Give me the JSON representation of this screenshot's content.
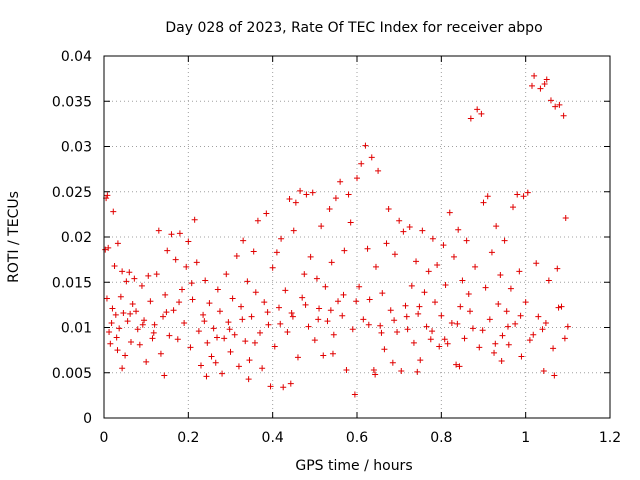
{
  "chart_data": {
    "type": "scatter",
    "title": "Day 028 of 2023, Rate Of TEC Index for receiver abpo",
    "xlabel": "GPS time / hours",
    "ylabel": "ROTI / TECUs",
    "xlim": [
      0,
      1.2
    ],
    "ylim": [
      0,
      0.04
    ],
    "xticks": [
      "0",
      "0.2",
      "0.4",
      "0.6",
      "0.8",
      "1",
      "1.2"
    ],
    "yticks": [
      "0",
      "0.005",
      "0.01",
      "0.015",
      "0.02",
      "0.025",
      "0.03",
      "0.035",
      "0.04"
    ],
    "grid": true,
    "marker": "+",
    "color": "#e00000",
    "series": [
      {
        "points": [
          [
            0.003,
            0.0186
          ],
          [
            0.005,
            0.0243
          ],
          [
            0.008,
            0.0246
          ],
          [
            0.01,
            0.0188
          ],
          [
            0.012,
            0.0095
          ],
          [
            0.015,
            0.0082
          ],
          [
            0.018,
            0.0105
          ],
          [
            0.02,
            0.0121
          ],
          [
            0.022,
            0.0228
          ],
          [
            0.025,
            0.0168
          ],
          [
            0.028,
            0.0114
          ],
          [
            0.03,
            0.0089
          ],
          [
            0.033,
            0.0193
          ],
          [
            0.036,
            0.0099
          ],
          [
            0.04,
            0.0134
          ],
          [
            0.043,
            0.0162
          ],
          [
            0.046,
            0.0116
          ],
          [
            0.05,
            0.0069
          ],
          [
            0.053,
            0.0151
          ],
          [
            0.056,
            0.0107
          ],
          [
            0.06,
            0.0161
          ],
          [
            0.064,
            0.0084
          ],
          [
            0.068,
            0.0126
          ],
          [
            0.072,
            0.0154
          ],
          [
            0.076,
            0.0118
          ],
          [
            0.08,
            0.0098
          ],
          [
            0.085,
            0.0081
          ],
          [
            0.09,
            0.0146
          ],
          [
            0.095,
            0.0108
          ],
          [
            0.1,
            0.0062
          ],
          [
            0.105,
            0.0157
          ],
          [
            0.11,
            0.0129
          ],
          [
            0.115,
            0.0088
          ],
          [
            0.12,
            0.0103
          ],
          [
            0.125,
            0.0159
          ],
          [
            0.13,
            0.0207
          ],
          [
            0.135,
            0.0071
          ],
          [
            0.14,
            0.0112
          ],
          [
            0.145,
            0.0136
          ],
          [
            0.15,
            0.0185
          ],
          [
            0.155,
            0.0091
          ],
          [
            0.16,
            0.0203
          ],
          [
            0.165,
            0.0119
          ],
          [
            0.17,
            0.0175
          ],
          [
            0.175,
            0.0087
          ],
          [
            0.18,
            0.0204
          ],
          [
            0.185,
            0.0142
          ],
          [
            0.19,
            0.0105
          ],
          [
            0.195,
            0.0167
          ],
          [
            0.2,
            0.0195
          ],
          [
            0.205,
            0.0078
          ],
          [
            0.21,
            0.0131
          ],
          [
            0.215,
            0.0219
          ],
          [
            0.22,
            0.0172
          ],
          [
            0.225,
            0.0096
          ],
          [
            0.23,
            0.0058
          ],
          [
            0.235,
            0.0114
          ],
          [
            0.24,
            0.0152
          ],
          [
            0.245,
            0.0083
          ],
          [
            0.25,
            0.0127
          ],
          [
            0.255,
            0.0068
          ],
          [
            0.26,
            0.0099
          ],
          [
            0.265,
            0.0061
          ],
          [
            0.27,
            0.0142
          ],
          [
            0.275,
            0.0118
          ],
          [
            0.28,
            0.0049
          ],
          [
            0.285,
            0.0088
          ],
          [
            0.29,
            0.0159
          ],
          [
            0.295,
            0.0106
          ],
          [
            0.3,
            0.0073
          ],
          [
            0.305,
            0.0132
          ],
          [
            0.31,
            0.0092
          ],
          [
            0.315,
            0.0179
          ],
          [
            0.32,
            0.0057
          ],
          [
            0.325,
            0.0123
          ],
          [
            0.33,
            0.0196
          ],
          [
            0.335,
            0.0085
          ],
          [
            0.34,
            0.0151
          ],
          [
            0.345,
            0.0064
          ],
          [
            0.35,
            0.0112
          ],
          [
            0.355,
            0.0184
          ],
          [
            0.36,
            0.0139
          ],
          [
            0.365,
            0.0218
          ],
          [
            0.37,
            0.0094
          ],
          [
            0.375,
            0.0055
          ],
          [
            0.38,
            0.0128
          ],
          [
            0.385,
            0.0226
          ],
          [
            0.39,
            0.0103
          ],
          [
            0.395,
            0.0035
          ],
          [
            0.4,
            0.0166
          ],
          [
            0.405,
            0.0079
          ],
          [
            0.41,
            0.0183
          ],
          [
            0.415,
            0.0122
          ],
          [
            0.42,
            0.0198
          ],
          [
            0.425,
            0.0034
          ],
          [
            0.43,
            0.0141
          ],
          [
            0.435,
            0.0095
          ],
          [
            0.44,
            0.0242
          ],
          [
            0.445,
            0.0116
          ],
          [
            0.45,
            0.0207
          ],
          [
            0.455,
            0.0238
          ],
          [
            0.46,
            0.0067
          ],
          [
            0.465,
            0.0251
          ],
          [
            0.47,
            0.0133
          ],
          [
            0.475,
            0.0159
          ],
          [
            0.48,
            0.0247
          ],
          [
            0.485,
            0.0101
          ],
          [
            0.49,
            0.0178
          ],
          [
            0.495,
            0.0249
          ],
          [
            0.5,
            0.0086
          ],
          [
            0.505,
            0.0154
          ],
          [
            0.51,
            0.0121
          ],
          [
            0.515,
            0.0212
          ],
          [
            0.52,
            0.0069
          ],
          [
            0.525,
            0.0145
          ],
          [
            0.53,
            0.0107
          ],
          [
            0.535,
            0.0231
          ],
          [
            0.54,
            0.0172
          ],
          [
            0.545,
            0.0092
          ],
          [
            0.55,
            0.0243
          ],
          [
            0.555,
            0.0129
          ],
          [
            0.56,
            0.0261
          ],
          [
            0.565,
            0.0113
          ],
          [
            0.57,
            0.0185
          ],
          [
            0.575,
            0.0053
          ],
          [
            0.58,
            0.0247
          ],
          [
            0.585,
            0.0216
          ],
          [
            0.59,
            0.0098
          ],
          [
            0.595,
            0.0026
          ],
          [
            0.6,
            0.0265
          ],
          [
            0.605,
            0.0145
          ],
          [
            0.61,
            0.0281
          ],
          [
            0.615,
            0.0109
          ],
          [
            0.62,
            0.0301
          ],
          [
            0.625,
            0.0187
          ],
          [
            0.63,
            0.0131
          ],
          [
            0.635,
            0.0288
          ],
          [
            0.64,
            0.0053
          ],
          [
            0.645,
            0.0167
          ],
          [
            0.65,
            0.0273
          ],
          [
            0.655,
            0.0102
          ],
          [
            0.66,
            0.0138
          ],
          [
            0.665,
            0.0076
          ],
          [
            0.67,
            0.0193
          ],
          [
            0.675,
            0.0231
          ],
          [
            0.68,
            0.0119
          ],
          [
            0.685,
            0.0061
          ],
          [
            0.69,
            0.0181
          ],
          [
            0.695,
            0.0095
          ],
          [
            0.7,
            0.0218
          ],
          [
            0.705,
            0.0052
          ],
          [
            0.71,
            0.0206
          ],
          [
            0.715,
            0.0124
          ],
          [
            0.72,
            0.0098
          ],
          [
            0.725,
            0.0211
          ],
          [
            0.73,
            0.0146
          ],
          [
            0.735,
            0.0083
          ],
          [
            0.74,
            0.0173
          ],
          [
            0.745,
            0.0115
          ],
          [
            0.75,
            0.0064
          ],
          [
            0.755,
            0.0207
          ],
          [
            0.76,
            0.0139
          ],
          [
            0.765,
            0.0101
          ],
          [
            0.77,
            0.0162
          ],
          [
            0.775,
            0.0087
          ],
          [
            0.78,
            0.0198
          ],
          [
            0.785,
            0.0128
          ],
          [
            0.79,
            0.0169
          ],
          [
            0.795,
            0.0079
          ],
          [
            0.8,
            0.0113
          ],
          [
            0.805,
            0.0191
          ],
          [
            0.81,
            0.0147
          ],
          [
            0.815,
            0.0082
          ],
          [
            0.82,
            0.0227
          ],
          [
            0.825,
            0.0105
          ],
          [
            0.83,
            0.0178
          ],
          [
            0.835,
            0.0059
          ],
          [
            0.84,
            0.0208
          ],
          [
            0.845,
            0.0123
          ],
          [
            0.85,
            0.0152
          ],
          [
            0.855,
            0.0088
          ],
          [
            0.86,
            0.0196
          ],
          [
            0.865,
            0.0137
          ],
          [
            0.87,
            0.0331
          ],
          [
            0.875,
            0.0099
          ],
          [
            0.88,
            0.0167
          ],
          [
            0.885,
            0.0341
          ],
          [
            0.89,
            0.0078
          ],
          [
            0.895,
            0.0336
          ],
          [
            0.9,
            0.0238
          ],
          [
            0.905,
            0.0144
          ],
          [
            0.91,
            0.0245
          ],
          [
            0.915,
            0.0109
          ],
          [
            0.92,
            0.0183
          ],
          [
            0.925,
            0.0072
          ],
          [
            0.93,
            0.0212
          ],
          [
            0.935,
            0.0126
          ],
          [
            0.94,
            0.0158
          ],
          [
            0.945,
            0.0091
          ],
          [
            0.95,
            0.0196
          ],
          [
            0.955,
            0.0118
          ],
          [
            0.96,
            0.0081
          ],
          [
            0.965,
            0.0143
          ],
          [
            0.97,
            0.0233
          ],
          [
            0.975,
            0.0104
          ],
          [
            0.98,
            0.0247
          ],
          [
            0.985,
            0.0162
          ],
          [
            0.99,
            0.0068
          ],
          [
            0.995,
            0.0245
          ],
          [
            1.0,
            0.0128
          ],
          [
            1.005,
            0.0249
          ],
          [
            1.01,
            0.0086
          ],
          [
            1.015,
            0.0367
          ],
          [
            1.02,
            0.0378
          ],
          [
            1.025,
            0.0171
          ],
          [
            1.03,
            0.0112
          ],
          [
            1.035,
            0.0364
          ],
          [
            1.04,
            0.0098
          ],
          [
            1.045,
            0.0369
          ],
          [
            1.05,
            0.0374
          ],
          [
            1.055,
            0.0152
          ],
          [
            1.06,
            0.0351
          ],
          [
            1.065,
            0.0077
          ],
          [
            1.07,
            0.0344
          ],
          [
            1.075,
            0.0165
          ],
          [
            1.08,
            0.0346
          ],
          [
            1.085,
            0.0123
          ],
          [
            1.09,
            0.0334
          ],
          [
            1.095,
            0.0221
          ],
          [
            1.1,
            0.0101
          ],
          [
            0.007,
            0.0132
          ],
          [
            0.032,
            0.0075
          ],
          [
            0.062,
            0.0115
          ],
          [
            0.092,
            0.0103
          ],
          [
            0.118,
            0.0094
          ],
          [
            0.148,
            0.0117
          ],
          [
            0.178,
            0.0128
          ],
          [
            0.208,
            0.0149
          ],
          [
            0.238,
            0.0107
          ],
          [
            0.268,
            0.0089
          ],
          [
            0.298,
            0.0098
          ],
          [
            0.328,
            0.0109
          ],
          [
            0.358,
            0.0083
          ],
          [
            0.388,
            0.0117
          ],
          [
            0.418,
            0.0104
          ],
          [
            0.448,
            0.0112
          ],
          [
            0.478,
            0.0125
          ],
          [
            0.508,
            0.0109
          ],
          [
            0.538,
            0.0119
          ],
          [
            0.568,
            0.0136
          ],
          [
            0.598,
            0.0129
          ],
          [
            0.628,
            0.0103
          ],
          [
            0.658,
            0.0094
          ],
          [
            0.688,
            0.0108
          ],
          [
            0.718,
            0.0112
          ],
          [
            0.748,
            0.0123
          ],
          [
            0.778,
            0.0096
          ],
          [
            0.808,
            0.0087
          ],
          [
            0.838,
            0.0104
          ],
          [
            0.868,
            0.0118
          ],
          [
            0.898,
            0.0097
          ],
          [
            0.928,
            0.0082
          ],
          [
            0.958,
            0.0101
          ],
          [
            0.988,
            0.0113
          ],
          [
            1.018,
            0.0092
          ],
          [
            1.048,
            0.0105
          ],
          [
            1.078,
            0.0122
          ],
          [
            1.093,
            0.0088
          ],
          [
            0.043,
            0.0055
          ],
          [
            0.143,
            0.0047
          ],
          [
            0.243,
            0.0046
          ],
          [
            0.343,
            0.0043
          ],
          [
            0.443,
            0.0038
          ],
          [
            0.543,
            0.0071
          ],
          [
            0.643,
            0.0048
          ],
          [
            0.743,
            0.0051
          ],
          [
            0.843,
            0.0057
          ],
          [
            0.943,
            0.0063
          ],
          [
            1.043,
            0.0052
          ],
          [
            1.068,
            0.0047
          ]
        ]
      }
    ]
  }
}
